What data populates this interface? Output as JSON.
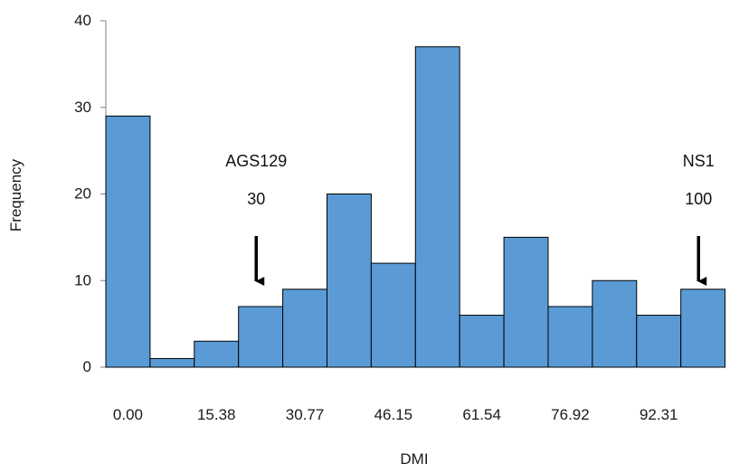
{
  "chart_data": {
    "type": "bar",
    "title": "",
    "xlabel": "DMI",
    "ylabel": "Frequency",
    "ylim": [
      0,
      40
    ],
    "yticks": [
      0,
      10,
      20,
      30,
      40
    ],
    "xtick_labels": [
      "0.00",
      "15.38",
      "30.77",
      "46.15",
      "61.54",
      "76.92",
      "92.31"
    ],
    "values": [
      29,
      1,
      3,
      7,
      9,
      20,
      12,
      37,
      6,
      15,
      7,
      10,
      6,
      9
    ],
    "bar_color": "#5b9bd5",
    "bar_edge_color": "#000000",
    "grid": false,
    "annotations": [
      {
        "name": "AGS129",
        "value": "30",
        "bin": 3
      },
      {
        "name": "NS1",
        "value": "100",
        "bin": 13
      }
    ]
  }
}
